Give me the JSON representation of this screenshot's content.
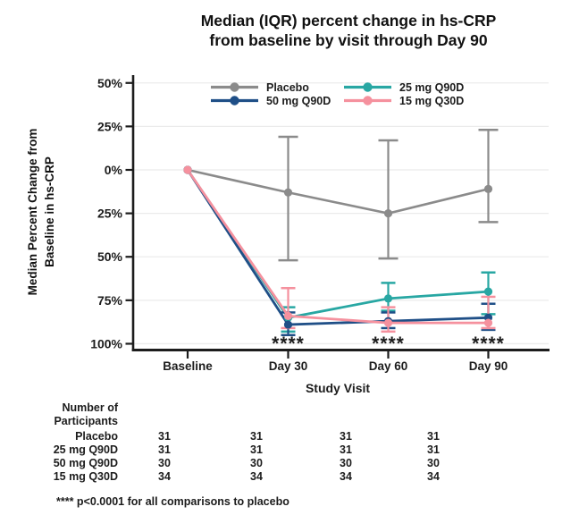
{
  "title": {
    "line1": "Median (IQR) percent change in hs-CRP",
    "line2": "from baseline by visit through Day 90"
  },
  "colors": {
    "placebo": "#8b8b8b",
    "dose25": "#28a7a3",
    "dose50": "#1f4f87",
    "dose15": "#f5919e",
    "axis": "#1c1c1c",
    "grid": "#ebebeb"
  },
  "chart_data": {
    "type": "line",
    "title": "Median (IQR) percent change in hs-CRP from baseline by visit through Day 90",
    "xlabel": "Study Visit",
    "ylabel_line1": "Median Percent Change from",
    "ylabel_line2": "Baseline in hs-CRP",
    "categories": [
      "Baseline",
      "Day 30",
      "Day 60",
      "Day 90"
    ],
    "y_axis": {
      "tick_labels": [
        "50%",
        "25%",
        "0%",
        "25%",
        "50%",
        "75%",
        "100%"
      ],
      "tick_values": [
        50,
        25,
        0,
        -25,
        -50,
        -75,
        -100
      ],
      "ylim": [
        -100,
        50
      ],
      "grid": "horizontal"
    },
    "series": [
      {
        "name": "Placebo",
        "color": "#8b8b8b",
        "median": [
          0,
          -13,
          -25,
          -11
        ],
        "iqr_upper": [
          null,
          19,
          17,
          23
        ],
        "iqr_lower": [
          null,
          -52,
          -51,
          -30
        ]
      },
      {
        "name": "25 mg Q90D",
        "color": "#28a7a3",
        "median": [
          0,
          -85,
          -74,
          -70
        ],
        "iqr_upper": [
          null,
          -79,
          -65,
          -59
        ],
        "iqr_lower": [
          null,
          -93,
          -81,
          -83
        ]
      },
      {
        "name": "50 mg Q90D",
        "color": "#1f4f87",
        "median": [
          0,
          -89,
          -87,
          -85
        ],
        "iqr_upper": [
          null,
          -82,
          -82,
          -77
        ],
        "iqr_lower": [
          null,
          -95,
          -91,
          -92
        ]
      },
      {
        "name": "15 mg Q30D",
        "color": "#f5919e",
        "median": [
          0,
          -84,
          -88,
          -88
        ],
        "iqr_upper": [
          null,
          -68,
          -79,
          -73
        ],
        "iqr_lower": [
          null,
          -91,
          -93,
          -91
        ]
      }
    ],
    "legend": {
      "position": "top-inside",
      "entries": [
        "Placebo",
        "25 mg Q90D",
        "50 mg Q90D",
        "15 mg Q30D"
      ]
    },
    "significance": {
      "marker": "****",
      "at_visits": [
        "Day 30",
        "Day 60",
        "Day 90"
      ]
    }
  },
  "participants_table": {
    "header_line1": "Number of",
    "header_line2": "Participants",
    "rows": [
      {
        "label": "Placebo",
        "values": [
          "31",
          "31",
          "31",
          "31"
        ]
      },
      {
        "label": "25 mg Q90D",
        "values": [
          "31",
          "31",
          "31",
          "31"
        ]
      },
      {
        "label": "50 mg Q90D",
        "values": [
          "30",
          "30",
          "30",
          "30"
        ]
      },
      {
        "label": "15 mg Q30D",
        "values": [
          "34",
          "34",
          "34",
          "34"
        ]
      }
    ]
  },
  "footnote": "**** p<0.0001 for all comparisons to placebo"
}
